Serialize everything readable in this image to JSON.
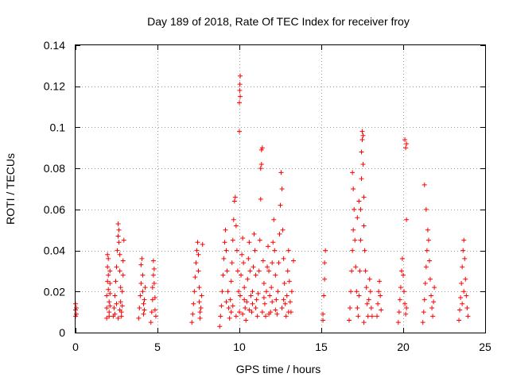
{
  "chart_data": {
    "type": "scatter",
    "title": "Day 189 of 2018, Rate Of TEC Index for receiver froy",
    "xlabel": "GPS time / hours",
    "ylabel": "ROTI / TECUs",
    "xlim": [
      0,
      25
    ],
    "ylim": [
      0,
      0.14
    ],
    "grid": true,
    "marker": "+",
    "color": "#ff0000",
    "xticks": [
      0,
      5,
      10,
      15,
      20,
      25
    ],
    "yticks": [
      0,
      0.02,
      0.04,
      0.06,
      0.08,
      0.1,
      0.12,
      0.14
    ],
    "xtick_labels": [
      "0",
      "5",
      "10",
      "15",
      "20",
      "25"
    ],
    "ytick_labels": [
      "0",
      "0.02",
      "0.04",
      "0.06",
      "0.08",
      "0.1",
      "0.12",
      "0.14"
    ],
    "series": [
      {
        "name": "ROTI",
        "points": [
          [
            0.0,
            0.008
          ],
          [
            0.0,
            0.011
          ],
          [
            0.0,
            0.014
          ],
          [
            0.05,
            0.009
          ],
          [
            0.05,
            0.012
          ],
          [
            1.9,
            0.007
          ],
          [
            1.9,
            0.012
          ],
          [
            1.9,
            0.018
          ],
          [
            1.95,
            0.025
          ],
          [
            1.95,
            0.032
          ],
          [
            1.95,
            0.038
          ],
          [
            2.0,
            0.036
          ],
          [
            2.0,
            0.028
          ],
          [
            2.0,
            0.021
          ],
          [
            2.05,
            0.015
          ],
          [
            2.05,
            0.01
          ],
          [
            2.05,
            0.008
          ],
          [
            2.1,
            0.013
          ],
          [
            2.1,
            0.019
          ],
          [
            2.1,
            0.024
          ],
          [
            2.1,
            0.03
          ],
          [
            2.3,
            0.008
          ],
          [
            2.35,
            0.012
          ],
          [
            2.4,
            0.018
          ],
          [
            2.45,
            0.025
          ],
          [
            2.5,
            0.032
          ],
          [
            2.55,
            0.04
          ],
          [
            2.6,
            0.047
          ],
          [
            2.6,
            0.053
          ],
          [
            2.65,
            0.05
          ],
          [
            2.65,
            0.044
          ],
          [
            2.7,
            0.038
          ],
          [
            2.7,
            0.03
          ],
          [
            2.75,
            0.022
          ],
          [
            2.75,
            0.015
          ],
          [
            2.8,
            0.01
          ],
          [
            2.8,
            0.008
          ],
          [
            2.85,
            0.013
          ],
          [
            2.85,
            0.02
          ],
          [
            2.9,
            0.028
          ],
          [
            2.9,
            0.035
          ],
          [
            2.95,
            0.045
          ],
          [
            2.6,
            0.007
          ],
          [
            2.7,
            0.011
          ],
          [
            2.5,
            0.014
          ],
          [
            2.4,
            0.009
          ],
          [
            3.85,
            0.007
          ],
          [
            3.9,
            0.012
          ],
          [
            3.95,
            0.018
          ],
          [
            4.0,
            0.024
          ],
          [
            4.0,
            0.033
          ],
          [
            4.05,
            0.036
          ],
          [
            4.1,
            0.028
          ],
          [
            4.1,
            0.02
          ],
          [
            4.15,
            0.014
          ],
          [
            4.15,
            0.009
          ],
          [
            4.2,
            0.011
          ],
          [
            4.2,
            0.016
          ],
          [
            4.25,
            0.022
          ],
          [
            4.6,
            0.005
          ],
          [
            4.65,
            0.01
          ],
          [
            4.7,
            0.016
          ],
          [
            4.7,
            0.022
          ],
          [
            4.75,
            0.028
          ],
          [
            4.75,
            0.035
          ],
          [
            4.8,
            0.031
          ],
          [
            4.8,
            0.024
          ],
          [
            4.85,
            0.017
          ],
          [
            4.85,
            0.011
          ],
          [
            4.9,
            0.008
          ],
          [
            7.1,
            0.005
          ],
          [
            7.15,
            0.009
          ],
          [
            7.2,
            0.014
          ],
          [
            7.25,
            0.02
          ],
          [
            7.3,
            0.027
          ],
          [
            7.35,
            0.034
          ],
          [
            7.4,
            0.04
          ],
          [
            7.45,
            0.044
          ],
          [
            7.5,
            0.038
          ],
          [
            7.5,
            0.03
          ],
          [
            7.55,
            0.022
          ],
          [
            7.55,
            0.015
          ],
          [
            7.6,
            0.01
          ],
          [
            7.6,
            0.007
          ],
          [
            7.65,
            0.012
          ],
          [
            7.7,
            0.018
          ],
          [
            7.75,
            0.043
          ],
          [
            8.8,
            0.003
          ],
          [
            8.85,
            0.008
          ],
          [
            8.9,
            0.013
          ],
          [
            8.95,
            0.02
          ],
          [
            9.0,
            0.028
          ],
          [
            9.05,
            0.036
          ],
          [
            9.1,
            0.044
          ],
          [
            9.15,
            0.05
          ],
          [
            9.2,
            0.04
          ],
          [
            9.25,
            0.03
          ],
          [
            9.3,
            0.02
          ],
          [
            9.35,
            0.012
          ],
          [
            9.4,
            0.007
          ],
          [
            9.45,
            0.016
          ],
          [
            9.5,
            0.025
          ],
          [
            9.55,
            0.034
          ],
          [
            9.6,
            0.045
          ],
          [
            9.65,
            0.055
          ],
          [
            9.7,
            0.064
          ],
          [
            9.75,
            0.066
          ],
          [
            9.8,
            0.052
          ],
          [
            9.85,
            0.04
          ],
          [
            9.9,
            0.03
          ],
          [
            9.95,
            0.02
          ],
          [
            10.0,
            0.098
          ],
          [
            10.0,
            0.112
          ],
          [
            10.02,
            0.118
          ],
          [
            10.03,
            0.121
          ],
          [
            10.05,
            0.125
          ],
          [
            10.05,
            0.115
          ],
          [
            10.0,
            0.01
          ],
          [
            10.05,
            0.018
          ],
          [
            10.1,
            0.028
          ],
          [
            10.15,
            0.038
          ],
          [
            10.2,
            0.046
          ],
          [
            10.25,
            0.034
          ],
          [
            10.3,
            0.022
          ],
          [
            10.35,
            0.012
          ],
          [
            10.4,
            0.006
          ],
          [
            10.45,
            0.015
          ],
          [
            10.5,
            0.026
          ],
          [
            10.55,
            0.036
          ],
          [
            10.6,
            0.044
          ],
          [
            10.65,
            0.03
          ],
          [
            10.7,
            0.018
          ],
          [
            10.75,
            0.01
          ],
          [
            10.8,
            0.02
          ],
          [
            10.85,
            0.032
          ],
          [
            10.9,
            0.048
          ],
          [
            10.95,
            0.04
          ],
          [
            11.0,
            0.028
          ],
          [
            11.05,
            0.016
          ],
          [
            11.1,
            0.008
          ],
          [
            11.15,
            0.019
          ],
          [
            11.2,
            0.03
          ],
          [
            11.25,
            0.045
          ],
          [
            11.35,
            0.089
          ],
          [
            11.4,
            0.09
          ],
          [
            11.35,
            0.082
          ],
          [
            11.3,
            0.08
          ],
          [
            11.3,
            0.065
          ],
          [
            11.45,
            0.035
          ],
          [
            11.5,
            0.024
          ],
          [
            11.55,
            0.014
          ],
          [
            11.6,
            0.008
          ],
          [
            11.65,
            0.02
          ],
          [
            11.7,
            0.032
          ],
          [
            11.75,
            0.042
          ],
          [
            11.8,
            0.03
          ],
          [
            11.85,
            0.018
          ],
          [
            11.9,
            0.01
          ],
          [
            11.95,
            0.022
          ],
          [
            12.0,
            0.034
          ],
          [
            12.05,
            0.044
          ],
          [
            12.1,
            0.055
          ],
          [
            12.15,
            0.04
          ],
          [
            12.2,
            0.028
          ],
          [
            12.25,
            0.016
          ],
          [
            12.3,
            0.009
          ],
          [
            12.35,
            0.02
          ],
          [
            12.4,
            0.034
          ],
          [
            12.45,
            0.048
          ],
          [
            12.5,
            0.062
          ],
          [
            12.55,
            0.078
          ],
          [
            12.6,
            0.07
          ],
          [
            12.65,
            0.05
          ],
          [
            12.7,
            0.036
          ],
          [
            12.75,
            0.024
          ],
          [
            12.8,
            0.014
          ],
          [
            12.85,
            0.008
          ],
          [
            12.9,
            0.018
          ],
          [
            12.95,
            0.03
          ],
          [
            13.0,
            0.04
          ],
          [
            13.05,
            0.025
          ],
          [
            13.1,
            0.015
          ],
          [
            13.15,
            0.01
          ],
          [
            13.2,
            0.02
          ],
          [
            13.3,
            0.035
          ],
          [
            9.5,
            0.01
          ],
          [
            9.8,
            0.008
          ],
          [
            10.2,
            0.009
          ],
          [
            10.6,
            0.011
          ],
          [
            11.0,
            0.012
          ],
          [
            11.4,
            0.01
          ],
          [
            11.8,
            0.009
          ],
          [
            12.2,
            0.011
          ],
          [
            12.6,
            0.012
          ],
          [
            13.0,
            0.01
          ],
          [
            9.2,
            0.015
          ],
          [
            9.6,
            0.013
          ],
          [
            10.3,
            0.016
          ],
          [
            10.8,
            0.014
          ],
          [
            11.5,
            0.017
          ],
          [
            12.0,
            0.015
          ],
          [
            12.7,
            0.016
          ],
          [
            15.1,
            0.006
          ],
          [
            15.1,
            0.009
          ],
          [
            15.15,
            0.018
          ],
          [
            15.2,
            0.026
          ],
          [
            15.2,
            0.034
          ],
          [
            15.25,
            0.04
          ],
          [
            16.7,
            0.006
          ],
          [
            16.75,
            0.012
          ],
          [
            16.8,
            0.02
          ],
          [
            16.85,
            0.03
          ],
          [
            16.9,
            0.04
          ],
          [
            16.95,
            0.05
          ],
          [
            17.0,
            0.06
          ],
          [
            16.95,
            0.07
          ],
          [
            16.9,
            0.078
          ],
          [
            17.05,
            0.045
          ],
          [
            17.1,
            0.032
          ],
          [
            17.15,
            0.02
          ],
          [
            17.2,
            0.012
          ],
          [
            17.25,
            0.008
          ],
          [
            17.3,
            0.018
          ],
          [
            17.35,
            0.03
          ],
          [
            17.4,
            0.045
          ],
          [
            17.4,
            0.06
          ],
          [
            17.45,
            0.075
          ],
          [
            17.45,
            0.088
          ],
          [
            17.5,
            0.094
          ],
          [
            17.5,
            0.098
          ],
          [
            17.55,
            0.096
          ],
          [
            17.55,
            0.082
          ],
          [
            17.6,
            0.066
          ],
          [
            17.6,
            0.052
          ],
          [
            17.65,
            0.04
          ],
          [
            17.7,
            0.03
          ],
          [
            17.75,
            0.022
          ],
          [
            17.8,
            0.014
          ],
          [
            17.85,
            0.008
          ],
          [
            17.9,
            0.016
          ],
          [
            17.95,
            0.026
          ],
          [
            18.0,
            0.02
          ],
          [
            18.05,
            0.012
          ],
          [
            18.1,
            0.008
          ],
          [
            17.3,
            0.064
          ],
          [
            17.2,
            0.056
          ],
          [
            17.6,
            0.005
          ],
          [
            18.4,
            0.008
          ],
          [
            18.45,
            0.014
          ],
          [
            18.5,
            0.02
          ],
          [
            18.55,
            0.025
          ],
          [
            18.6,
            0.018
          ],
          [
            18.65,
            0.011
          ],
          [
            19.7,
            0.005
          ],
          [
            19.75,
            0.01
          ],
          [
            19.8,
            0.016
          ],
          [
            19.85,
            0.022
          ],
          [
            19.9,
            0.03
          ],
          [
            19.95,
            0.036
          ],
          [
            20.0,
            0.028
          ],
          [
            20.05,
            0.02
          ],
          [
            20.1,
            0.014
          ],
          [
            20.15,
            0.009
          ],
          [
            20.2,
            0.012
          ],
          [
            20.1,
            0.094
          ],
          [
            20.15,
            0.09
          ],
          [
            20.2,
            0.092
          ],
          [
            20.2,
            0.055
          ],
          [
            21.2,
            0.005
          ],
          [
            21.25,
            0.01
          ],
          [
            21.3,
            0.016
          ],
          [
            21.35,
            0.024
          ],
          [
            21.4,
            0.032
          ],
          [
            21.45,
            0.04
          ],
          [
            21.5,
            0.05
          ],
          [
            21.55,
            0.045
          ],
          [
            21.6,
            0.035
          ],
          [
            21.65,
            0.026
          ],
          [
            21.7,
            0.018
          ],
          [
            21.75,
            0.012
          ],
          [
            21.8,
            0.008
          ],
          [
            21.85,
            0.015
          ],
          [
            21.9,
            0.022
          ],
          [
            21.3,
            0.072
          ],
          [
            21.4,
            0.06
          ],
          [
            23.4,
            0.006
          ],
          [
            23.45,
            0.011
          ],
          [
            23.5,
            0.017
          ],
          [
            23.55,
            0.024
          ],
          [
            23.6,
            0.032
          ],
          [
            23.65,
            0.04
          ],
          [
            23.7,
            0.045
          ],
          [
            23.75,
            0.036
          ],
          [
            23.8,
            0.026
          ],
          [
            23.85,
            0.018
          ],
          [
            23.9,
            0.012
          ],
          [
            23.95,
            0.008
          ],
          [
            23.7,
            0.02
          ],
          [
            23.6,
            0.014
          ]
        ]
      }
    ]
  }
}
